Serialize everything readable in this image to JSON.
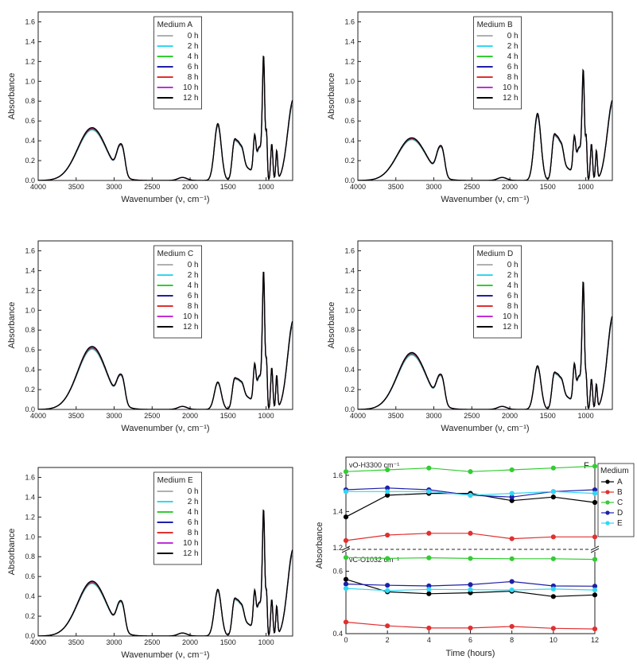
{
  "chart_data": [
    {
      "type": "line",
      "panel_label": "",
      "xlabel": "Wavenumber (ν, cm⁻¹)",
      "ylabel": "Absorbance",
      "x_ticks": [
        "4000",
        "3500",
        "3000",
        "2500",
        "2000",
        "1500",
        "1000"
      ],
      "y_ticks": [
        "0.0",
        "0.2",
        "0.4",
        "0.6",
        "0.8",
        "1.0",
        "1.2",
        "1.4",
        "1.6"
      ],
      "xlim": [
        4000,
        650
      ],
      "ylim": [
        0,
        1.7
      ],
      "x_reversed": true,
      "legend": {
        "title": "Medium A",
        "entries": [
          "0 h",
          "2 h",
          "4 h",
          "6 h",
          "8 h",
          "10 h",
          "12 h"
        ],
        "placement": "top-center"
      },
      "peaks": {
        "oh": 0.52,
        "ch2": 0.39,
        "ch1": 0.37,
        "band1630": 0.56,
        "band1420": 0.64,
        "band1150": 0.7,
        "band1032": 1.48,
        "band993": 0.58,
        "band900": 0.48,
        "band650": 0.8
      },
      "series": [
        {
          "name": "0 h",
          "color": "#b0b0b0",
          "values": []
        },
        {
          "name": "2 h",
          "color": "#33d6f2",
          "values": []
        },
        {
          "name": "4 h",
          "color": "#33cc33",
          "values": []
        },
        {
          "name": "6 h",
          "color": "#1f1fa8",
          "values": []
        },
        {
          "name": "8 h",
          "color": "#e03030",
          "values": []
        },
        {
          "name": "10 h",
          "color": "#c030d8",
          "values": []
        },
        {
          "name": "12 h",
          "color": "#000000",
          "values": []
        }
      ]
    },
    {
      "type": "line",
      "panel_label": "",
      "xlabel": "Wavenumber (ν, cm⁻¹)",
      "ylabel": "Absorbance",
      "x_ticks": [
        "4000",
        "3500",
        "3000",
        "2500",
        "2000",
        "1500",
        "1000"
      ],
      "y_ticks": [
        "0.0",
        "0.2",
        "0.4",
        "0.6",
        "0.8",
        "1.0",
        "1.2",
        "1.4",
        "1.6"
      ],
      "xlim": [
        4000,
        650
      ],
      "ylim": [
        0,
        1.7
      ],
      "x_reversed": true,
      "legend": {
        "title": "Medium B",
        "entries": [
          "0 h",
          "2 h",
          "4 h",
          "6 h",
          "8 h",
          "10 h",
          "12 h"
        ],
        "placement": "top-center"
      },
      "peaks": {
        "oh": 0.42,
        "ch2": 0.38,
        "ch1": 0.37,
        "band1630": 0.66,
        "band1420": 0.72,
        "band1150": 0.68,
        "band1032": 1.3,
        "band993": 0.52,
        "band900": 0.48,
        "band650": 0.8
      },
      "series": [
        {
          "name": "0 h",
          "color": "#b0b0b0",
          "values": []
        },
        {
          "name": "2 h",
          "color": "#33d6f2",
          "values": []
        },
        {
          "name": "4 h",
          "color": "#33cc33",
          "values": []
        },
        {
          "name": "6 h",
          "color": "#1f1fa8",
          "values": []
        },
        {
          "name": "8 h",
          "color": "#e03030",
          "values": []
        },
        {
          "name": "10 h",
          "color": "#c030d8",
          "values": []
        },
        {
          "name": "12 h",
          "color": "#000000",
          "values": []
        }
      ]
    },
    {
      "type": "line",
      "panel_label": "",
      "xlabel": "Wavenumber (ν, cm⁻¹)",
      "ylabel": "Absorbance",
      "x_ticks": [
        "4000",
        "3500",
        "3000",
        "2500",
        "2000",
        "1500",
        "1000"
      ],
      "y_ticks": [
        "0.0",
        "0.2",
        "0.4",
        "0.6",
        "0.8",
        "1.0",
        "1.2",
        "1.4",
        "1.6"
      ],
      "xlim": [
        4000,
        650
      ],
      "ylim": [
        0,
        1.7
      ],
      "x_reversed": true,
      "legend": {
        "title": "Medium C",
        "entries": [
          "0 h",
          "2 h",
          "4 h",
          "6 h",
          "8 h",
          "10 h",
          "12 h"
        ],
        "placement": "top-center"
      },
      "peaks": {
        "oh": 0.62,
        "ch2": 0.35,
        "ch1": 0.34,
        "band1630": 0.27,
        "band1420": 0.48,
        "band1150": 0.7,
        "band1032": 1.65,
        "band993": 0.58,
        "band900": 0.55,
        "band650": 0.88
      },
      "series": [
        {
          "name": "0 h",
          "color": "#b0b0b0",
          "values": []
        },
        {
          "name": "2 h",
          "color": "#33d6f2",
          "values": []
        },
        {
          "name": "4 h",
          "color": "#33cc33",
          "values": []
        },
        {
          "name": "6 h",
          "color": "#1f1fa8",
          "values": []
        },
        {
          "name": "8 h",
          "color": "#e03030",
          "values": []
        },
        {
          "name": "10 h",
          "color": "#c030d8",
          "values": []
        },
        {
          "name": "12 h",
          "color": "#000000",
          "values": []
        }
      ]
    },
    {
      "type": "line",
      "panel_label": "",
      "xlabel": "Wavenumber (ν, cm⁻¹)",
      "ylabel": "Absorbance",
      "x_ticks": [
        "4000",
        "3500",
        "3000",
        "2500",
        "2000",
        "1500",
        "1000"
      ],
      "y_ticks": [
        "0.0",
        "0.2",
        "0.4",
        "0.6",
        "0.8",
        "1.0",
        "1.2",
        "1.4",
        "1.6"
      ],
      "xlim": [
        4000,
        650
      ],
      "ylim": [
        0,
        1.7
      ],
      "x_reversed": true,
      "legend": {
        "title": "Medium D",
        "entries": [
          "0 h",
          "2 h",
          "4 h",
          "6 h",
          "8 h",
          "10 h",
          "12 h"
        ],
        "placement": "top-center"
      },
      "peaks": {
        "oh": 0.56,
        "ch2": 0.36,
        "ch1": 0.35,
        "band1630": 0.43,
        "band1420": 0.57,
        "band1150": 0.7,
        "band1032": 1.52,
        "band993": 0.38,
        "band900": 0.4,
        "band650": 0.93
      },
      "series": [
        {
          "name": "0 h",
          "color": "#b0b0b0",
          "values": []
        },
        {
          "name": "2 h",
          "color": "#33d6f2",
          "values": []
        },
        {
          "name": "4 h",
          "color": "#33cc33",
          "values": []
        },
        {
          "name": "6 h",
          "color": "#1f1fa8",
          "values": []
        },
        {
          "name": "8 h",
          "color": "#e03030",
          "values": []
        },
        {
          "name": "10 h",
          "color": "#c030d8",
          "values": []
        },
        {
          "name": "12 h",
          "color": "#000000",
          "values": []
        }
      ]
    },
    {
      "type": "line",
      "panel_label": "",
      "xlabel": "Wavenumber (ν, cm⁻¹)",
      "ylabel": "Absorbance",
      "x_ticks": [
        "4000",
        "3500",
        "3000",
        "2500",
        "2000",
        "1500",
        "1000"
      ],
      "y_ticks": [
        "0.0",
        "0.2",
        "0.4",
        "0.6",
        "0.8",
        "1.0",
        "1.2",
        "1.4",
        "1.6"
      ],
      "xlim": [
        4000,
        650
      ],
      "ylim": [
        0,
        1.7
      ],
      "x_reversed": true,
      "legend": {
        "title": "Medium E",
        "entries": [
          "0 h",
          "2 h",
          "4 h",
          "6 h",
          "8 h",
          "10 h",
          "12 h"
        ],
        "placement": "top-center"
      },
      "peaks": {
        "oh": 0.54,
        "ch2": 0.37,
        "ch1": 0.35,
        "band1630": 0.46,
        "band1420": 0.58,
        "band1150": 0.7,
        "band1032": 1.5,
        "band993": 0.52,
        "band900": 0.48,
        "band650": 0.86
      },
      "series": [
        {
          "name": "0 h",
          "color": "#b0b0b0",
          "values": []
        },
        {
          "name": "2 h",
          "color": "#33d6f2",
          "values": []
        },
        {
          "name": "4 h",
          "color": "#33cc33",
          "values": []
        },
        {
          "name": "6 h",
          "color": "#1f1fa8",
          "values": []
        },
        {
          "name": "8 h",
          "color": "#e03030",
          "values": []
        },
        {
          "name": "10 h",
          "color": "#c030d8",
          "values": []
        },
        {
          "name": "12 h",
          "color": "#000000",
          "values": []
        }
      ]
    },
    {
      "type": "line",
      "panel_label": "F",
      "xlabel": "Time (hours)",
      "ylabel": "Absorbance",
      "x": [
        0,
        2,
        4,
        6,
        8,
        10,
        12
      ],
      "x_ticks": [
        "0",
        "2",
        "4",
        "6",
        "8",
        "10",
        "12"
      ],
      "xlim": [
        0,
        12
      ],
      "broken_axis": true,
      "upper": {
        "annotation": "νO-H3300 cm⁻¹",
        "ylim": [
          1.2,
          1.7
        ],
        "y_ticks": [
          "1.2",
          "1.4",
          "1.6"
        ],
        "series": [
          {
            "name": "A",
            "color": "#000000",
            "values": [
              1.37,
              1.49,
              1.5,
              1.5,
              1.46,
              1.48,
              1.45
            ]
          },
          {
            "name": "B",
            "color": "#e03030",
            "values": [
              1.24,
              1.27,
              1.28,
              1.28,
              1.25,
              1.26,
              1.26
            ]
          },
          {
            "name": "C",
            "color": "#33cc33",
            "values": [
              1.62,
              1.63,
              1.64,
              1.62,
              1.63,
              1.64,
              1.65
            ]
          },
          {
            "name": "D",
            "color": "#1f1fa8",
            "values": [
              1.52,
              1.53,
              1.52,
              1.49,
              1.48,
              1.51,
              1.52
            ]
          },
          {
            "name": "E",
            "color": "#33d6f2",
            "values": [
              1.51,
              1.51,
              1.51,
              1.49,
              1.5,
              1.51,
              1.5
            ]
          }
        ]
      },
      "lower": {
        "annotation": "νC-O1032 cm⁻¹",
        "ylim": [
          0.4,
          0.665
        ],
        "y_ticks": [
          "0.4",
          "0.6"
        ],
        "series": [
          {
            "name": "A",
            "color": "#000000",
            "values": [
              0.574,
              0.534,
              0.528,
              0.531,
              0.536,
              0.519,
              0.524
            ]
          },
          {
            "name": "B",
            "color": "#e03030",
            "values": [
              0.437,
              0.425,
              0.418,
              0.418,
              0.423,
              0.417,
              0.415
            ]
          },
          {
            "name": "C",
            "color": "#33cc33",
            "values": [
              0.644,
              0.641,
              0.643,
              0.641,
              0.64,
              0.64,
              0.638
            ]
          },
          {
            "name": "D",
            "color": "#1f1fa8",
            "values": [
              0.559,
              0.555,
              0.553,
              0.557,
              0.567,
              0.553,
              0.552
            ]
          },
          {
            "name": "E",
            "color": "#33d6f2",
            "values": [
              0.545,
              0.538,
              0.542,
              0.541,
              0.54,
              0.543,
              0.54
            ]
          }
        ]
      },
      "legend": {
        "title": "Medium",
        "entries": [
          "A",
          "B",
          "C",
          "D",
          "E"
        ],
        "placement": "right-outside"
      }
    }
  ]
}
